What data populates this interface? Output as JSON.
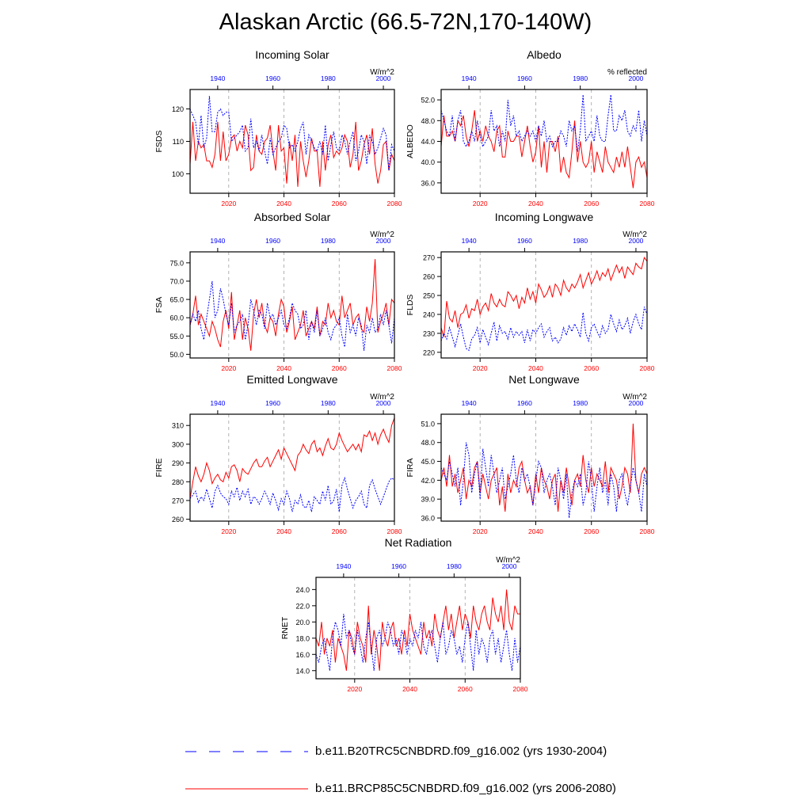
{
  "title": "Alaskan Arctic (66.5-72N,170-140W)",
  "colors": {
    "historical": "#0000ff",
    "future": "#ff0000",
    "axis": "#000000",
    "grid": "#a0a0a0"
  },
  "legend": [
    {
      "label": "b.e11.B20TRC5CNBDRD.f09_g16.002 (yrs 1930-2004)",
      "series": "historical",
      "style": "dashed"
    },
    {
      "label": "b.e11.BRCP85C5CNBDRD.f09_g16.002 (yrs 2006-2080)",
      "series": "future",
      "style": "solid"
    }
  ],
  "chart_data": [
    {
      "type": "line",
      "title": "Incoming Solar",
      "ylabel": "FSDS",
      "units": "W/m^2",
      "ylim": [
        94,
        126
      ],
      "yticks": [
        100,
        110,
        120
      ],
      "ytick_labels": [
        "100",
        "110",
        "120"
      ],
      "top_xaxis": {
        "range": [
          1930,
          2004
        ],
        "ticks": [
          1940,
          1960,
          1980,
          2000
        ]
      },
      "bottom_xaxis": {
        "range": [
          2006,
          2080
        ],
        "ticks": [
          2020,
          2040,
          2060,
          2080
        ]
      },
      "historical": [
        120,
        118,
        116,
        109,
        118,
        108,
        111,
        124,
        113,
        113,
        119,
        120,
        118,
        119,
        119,
        110,
        111,
        112,
        113,
        115,
        107,
        108,
        117,
        108,
        110,
        107,
        112,
        107,
        103,
        111,
        106,
        108,
        110,
        111,
        115,
        114,
        108,
        109,
        107,
        110,
        114,
        116,
        106,
        112,
        110,
        108,
        107,
        110,
        106,
        115,
        104,
        109,
        113,
        108,
        107,
        112,
        110,
        106,
        110,
        113,
        104,
        107,
        112,
        110,
        103,
        112,
        110,
        106,
        108,
        111,
        114,
        112,
        101,
        109,
        107
      ],
      "future": [
        103,
        116,
        104,
        110,
        108,
        109,
        104,
        104,
        102,
        106,
        116,
        104,
        113,
        104,
        106,
        111,
        112,
        107,
        110,
        108,
        115,
        112,
        101,
        102,
        112,
        107,
        106,
        110,
        111,
        115,
        107,
        101,
        115,
        107,
        108,
        97,
        110,
        104,
        112,
        96,
        110,
        104,
        99,
        104,
        111,
        107,
        107,
        96,
        110,
        101,
        109,
        112,
        105,
        107,
        106,
        108,
        112,
        110,
        102,
        106,
        116,
        101,
        104,
        109,
        112,
        106,
        114,
        103,
        97,
        101,
        109,
        110,
        101,
        106,
        104
      ]
    },
    {
      "type": "line",
      "title": "Albedo",
      "ylabel": "ALBEDO",
      "units": "% reflected",
      "ylim": [
        34,
        54
      ],
      "yticks": [
        36,
        40,
        44,
        48,
        52
      ],
      "ytick_labels": [
        "36.0",
        "40.0",
        "44.0",
        "48.0",
        "52.0"
      ],
      "top_xaxis": {
        "range": [
          1930,
          2004
        ],
        "ticks": [
          1940,
          1960,
          1980,
          2000
        ]
      },
      "bottom_xaxis": {
        "range": [
          2006,
          2080
        ],
        "ticks": [
          2020,
          2040,
          2060,
          2080
        ]
      },
      "historical": [
        50,
        48,
        46,
        45,
        49,
        44,
        48,
        50,
        44,
        43,
        44,
        46,
        44,
        48,
        45,
        43,
        44,
        45,
        50,
        46,
        47,
        43,
        46,
        44,
        52,
        47,
        49,
        45,
        46,
        44,
        45,
        46,
        45,
        46,
        44,
        47,
        45,
        48,
        44,
        45,
        43,
        44,
        44,
        46,
        45,
        43,
        48,
        46,
        47,
        42,
        46,
        53,
        44,
        45,
        46,
        44,
        49,
        45,
        44,
        44,
        49,
        53,
        46,
        46,
        49,
        48,
        50,
        46,
        45,
        47,
        46,
        50,
        44,
        48,
        45
      ],
      "future": [
        43,
        49,
        45,
        45,
        46,
        44,
        48,
        47,
        49,
        45,
        43,
        46,
        50,
        44,
        46,
        44,
        47,
        45,
        44,
        42,
        46,
        47,
        41,
        41,
        46,
        44,
        44,
        45,
        45,
        41,
        44,
        47,
        43,
        40,
        42,
        47,
        39,
        44,
        38,
        44,
        44,
        42,
        45,
        38,
        41,
        38,
        37,
        42,
        48,
        40,
        44,
        40,
        39,
        40,
        44,
        38,
        42,
        40,
        38,
        43,
        40,
        39,
        38,
        41,
        39,
        42,
        39,
        43,
        39,
        35,
        40,
        41,
        39,
        40,
        37
      ]
    },
    {
      "type": "line",
      "title": "Absorbed Solar",
      "ylabel": "FSA",
      "units": "W/m^2",
      "ylim": [
        49,
        78
      ],
      "yticks": [
        50,
        55,
        60,
        65,
        70,
        75
      ],
      "ytick_labels": [
        "50.0",
        "55.0",
        "60.0",
        "65.0",
        "70.0",
        "75.0"
      ],
      "top_xaxis": {
        "range": [
          1930,
          2004
        ],
        "ticks": [
          1940,
          1960,
          1980,
          2000
        ]
      },
      "bottom_xaxis": {
        "range": [
          2006,
          2080
        ],
        "ticks": [
          2020,
          2040,
          2060,
          2080
        ]
      },
      "historical": [
        58,
        61,
        59,
        62,
        57,
        54,
        60,
        65,
        70,
        60,
        62,
        68,
        65,
        61,
        58,
        64,
        56,
        58,
        59,
        61,
        54,
        58,
        65,
        62,
        58,
        62,
        61,
        57,
        64,
        60,
        61,
        58,
        60,
        62,
        58,
        57,
        60,
        64,
        62,
        61,
        57,
        58,
        62,
        54,
        59,
        56,
        62,
        55,
        57,
        60,
        56,
        54,
        57,
        58,
        60,
        55,
        52,
        61,
        56,
        58,
        55,
        60,
        58,
        51,
        58,
        56,
        60,
        56,
        57,
        61,
        58,
        62,
        58,
        53,
        60
      ],
      "future": [
        58,
        61,
        66,
        58,
        61,
        59,
        57,
        55,
        59,
        57,
        54,
        52,
        59,
        62,
        57,
        67,
        54,
        58,
        62,
        54,
        60,
        57,
        51,
        61,
        65,
        60,
        64,
        58,
        56,
        60,
        59,
        55,
        61,
        65,
        63,
        56,
        59,
        63,
        54,
        56,
        58,
        62,
        55,
        57,
        59,
        57,
        63,
        55,
        59,
        58,
        64,
        60,
        62,
        59,
        58,
        66,
        60,
        62,
        64,
        58,
        60,
        61,
        57,
        56,
        63,
        59,
        64,
        76,
        56,
        59,
        61,
        64,
        58,
        65,
        64
      ]
    },
    {
      "type": "line",
      "title": "Incoming Longwave",
      "ylabel": "FLDS",
      "units": "W/m^2",
      "ylim": [
        217,
        273
      ],
      "yticks": [
        220,
        230,
        240,
        250,
        260,
        270
      ],
      "ytick_labels": [
        "220",
        "230",
        "240",
        "250",
        "260",
        "270"
      ],
      "top_xaxis": {
        "range": [
          1930,
          2004
        ],
        "ticks": [
          1940,
          1960,
          1980,
          2000
        ]
      },
      "bottom_xaxis": {
        "range": [
          2006,
          2080
        ],
        "ticks": [
          2020,
          2040,
          2060,
          2080
        ]
      },
      "historical": [
        226,
        230,
        227,
        233,
        228,
        223,
        229,
        235,
        228,
        222,
        221,
        227,
        229,
        233,
        225,
        232,
        228,
        224,
        230,
        236,
        226,
        234,
        230,
        231,
        227,
        233,
        228,
        231,
        229,
        231,
        225,
        232,
        226,
        232,
        230,
        233,
        235,
        228,
        231,
        233,
        226,
        228,
        225,
        227,
        233,
        229,
        234,
        231,
        235,
        232,
        228,
        241,
        230,
        226,
        233,
        235,
        231,
        228,
        234,
        230,
        232,
        240,
        235,
        231,
        237,
        232,
        234,
        238,
        230,
        236,
        240,
        235,
        232,
        244,
        240
      ],
      "future": [
        233,
        228,
        247,
        238,
        236,
        242,
        233,
        240,
        241,
        245,
        238,
        243,
        242,
        248,
        240,
        244,
        246,
        242,
        251,
        246,
        244,
        248,
        245,
        244,
        252,
        250,
        247,
        250,
        243,
        249,
        246,
        254,
        248,
        252,
        246,
        256,
        253,
        249,
        251,
        255,
        249,
        256,
        254,
        250,
        258,
        254,
        252,
        256,
        254,
        257,
        261,
        254,
        258,
        262,
        256,
        259,
        263,
        258,
        262,
        260,
        264,
        258,
        262,
        266,
        262,
        265,
        259,
        265,
        263,
        261,
        267,
        265,
        264,
        270,
        268
      ]
    },
    {
      "type": "line",
      "title": "Emitted Longwave",
      "ylabel": "FIRE",
      "units": "W/m^2",
      "ylim": [
        259,
        316
      ],
      "yticks": [
        260,
        270,
        280,
        290,
        300,
        310
      ],
      "ytick_labels": [
        "260",
        "270",
        "280",
        "290",
        "300",
        "310"
      ],
      "top_xaxis": {
        "range": [
          1930,
          2004
        ],
        "ticks": [
          1940,
          1960,
          1980,
          2000
        ]
      },
      "bottom_xaxis": {
        "range": [
          2006,
          2080
        ],
        "ticks": [
          2020,
          2040,
          2060,
          2080
        ]
      },
      "historical": [
        271,
        273,
        275,
        269,
        272,
        270,
        276,
        271,
        266,
        275,
        278,
        274,
        272,
        271,
        268,
        275,
        272,
        277,
        270,
        275,
        272,
        276,
        268,
        272,
        271,
        268,
        271,
        275,
        272,
        268,
        274,
        270,
        265,
        271,
        268,
        275,
        271,
        264,
        270,
        268,
        273,
        267,
        266,
        270,
        264,
        272,
        270,
        268,
        275,
        270,
        278,
        268,
        270,
        276,
        264,
        278,
        282,
        276,
        271,
        266,
        270,
        272,
        275,
        268,
        266,
        278,
        281,
        276,
        272,
        268,
        272,
        276,
        280,
        282,
        281
      ],
      "future": [
        271,
        280,
        288,
        283,
        280,
        284,
        290,
        286,
        279,
        282,
        284,
        281,
        280,
        285,
        282,
        288,
        289,
        286,
        280,
        287,
        285,
        284,
        287,
        290,
        292,
        288,
        288,
        291,
        293,
        288,
        291,
        294,
        297,
        292,
        298,
        295,
        292,
        289,
        286,
        294,
        296,
        300,
        297,
        295,
        300,
        302,
        296,
        298,
        294,
        299,
        303,
        298,
        297,
        300,
        306,
        302,
        299,
        296,
        298,
        300,
        297,
        300,
        296,
        305,
        304,
        307,
        302,
        306,
        300,
        305,
        308,
        304,
        301,
        310,
        314
      ]
    },
    {
      "type": "line",
      "title": "Net Longwave",
      "ylabel": "FIRA",
      "units": "W/m^2",
      "ylim": [
        35.5,
        52.5
      ],
      "yticks": [
        36,
        39,
        42,
        45,
        48,
        51
      ],
      "ytick_labels": [
        "36.0",
        "39.0",
        "42.0",
        "45.0",
        "48.0",
        "51.0"
      ],
      "top_xaxis": {
        "range": [
          1930,
          2004
        ],
        "ticks": [
          1940,
          1960,
          1980,
          2000
        ]
      },
      "bottom_xaxis": {
        "range": [
          2006,
          2080
        ],
        "ticks": [
          2020,
          2040,
          2060,
          2080
        ]
      },
      "historical": [
        44,
        43,
        42,
        45,
        43,
        41,
        44,
        38,
        42,
        48,
        46,
        40,
        43,
        45,
        39,
        47,
        44,
        41,
        46,
        43,
        40,
        42,
        44,
        39,
        41,
        43,
        46,
        42,
        40,
        44,
        42,
        43,
        41,
        38,
        42,
        45,
        44,
        40,
        42,
        43,
        41,
        38,
        44,
        42,
        39,
        43,
        36,
        40,
        42,
        41,
        43,
        38,
        40,
        45,
        42,
        37,
        41,
        44,
        40,
        42,
        38,
        43,
        41,
        37,
        42,
        43,
        40,
        38,
        41,
        44,
        42,
        40,
        37,
        43,
        41
      ],
      "future": [
        42,
        44,
        41,
        46,
        41,
        43,
        40,
        42,
        44,
        39,
        42,
        41,
        44,
        45,
        40,
        43,
        41,
        39,
        42,
        43,
        44,
        38,
        41,
        37,
        43,
        40,
        42,
        41,
        44,
        45,
        42,
        40,
        41,
        38,
        43,
        40,
        44,
        42,
        41,
        39,
        42,
        43,
        37,
        42,
        40,
        44,
        41,
        38,
        42,
        43,
        41,
        46,
        42,
        40,
        44,
        41,
        43,
        42,
        41,
        45,
        40,
        44,
        43,
        42,
        39,
        41,
        44,
        43,
        40,
        51,
        42,
        40,
        43,
        44,
        43
      ]
    },
    {
      "type": "line",
      "title": "Net Radiation",
      "ylabel": "RNET",
      "units": "W/m^2",
      "ylim": [
        13,
        25.5
      ],
      "yticks": [
        14,
        16,
        18,
        20,
        22,
        24
      ],
      "ytick_labels": [
        "14.0",
        "16.0",
        "18.0",
        "20.0",
        "22.0",
        "24.0"
      ],
      "top_xaxis": {
        "range": [
          1930,
          2004
        ],
        "ticks": [
          1940,
          1960,
          1980,
          2000
        ]
      },
      "bottom_xaxis": {
        "range": [
          2006,
          2080
        ],
        "ticks": [
          2020,
          2040,
          2060,
          2080
        ]
      },
      "historical": [
        16,
        15,
        17,
        18,
        16,
        14,
        18,
        20,
        19,
        17,
        21,
        18,
        19,
        17,
        16,
        19,
        17,
        15,
        18,
        20,
        17,
        14,
        18,
        19,
        17,
        18,
        20,
        19,
        17,
        18,
        16,
        19,
        18,
        16,
        18,
        17,
        19,
        18,
        20,
        17,
        16,
        18,
        19,
        17,
        15,
        18,
        20,
        16,
        17,
        19,
        18,
        16,
        17,
        15,
        18,
        20,
        17,
        14,
        19,
        16,
        18,
        17,
        15,
        18,
        19,
        16,
        18,
        15,
        17,
        19,
        16,
        14,
        18,
        15,
        17
      ],
      "future": [
        18,
        17,
        20,
        16,
        18,
        17,
        19,
        15,
        18,
        17,
        16,
        14,
        19,
        18,
        16,
        20,
        18,
        17,
        15,
        22,
        16,
        19,
        17,
        14,
        20,
        18,
        17,
        19,
        20,
        17,
        18,
        16,
        19,
        17,
        21,
        19,
        18,
        17,
        16,
        20,
        18,
        19,
        17,
        21,
        19,
        18,
        20,
        22,
        19,
        21,
        18,
        20,
        22,
        19,
        21,
        20,
        18,
        22,
        20,
        19,
        21,
        22,
        20,
        19,
        23,
        21,
        20,
        22,
        19,
        24,
        20,
        19,
        22,
        21,
        21
      ]
    }
  ]
}
